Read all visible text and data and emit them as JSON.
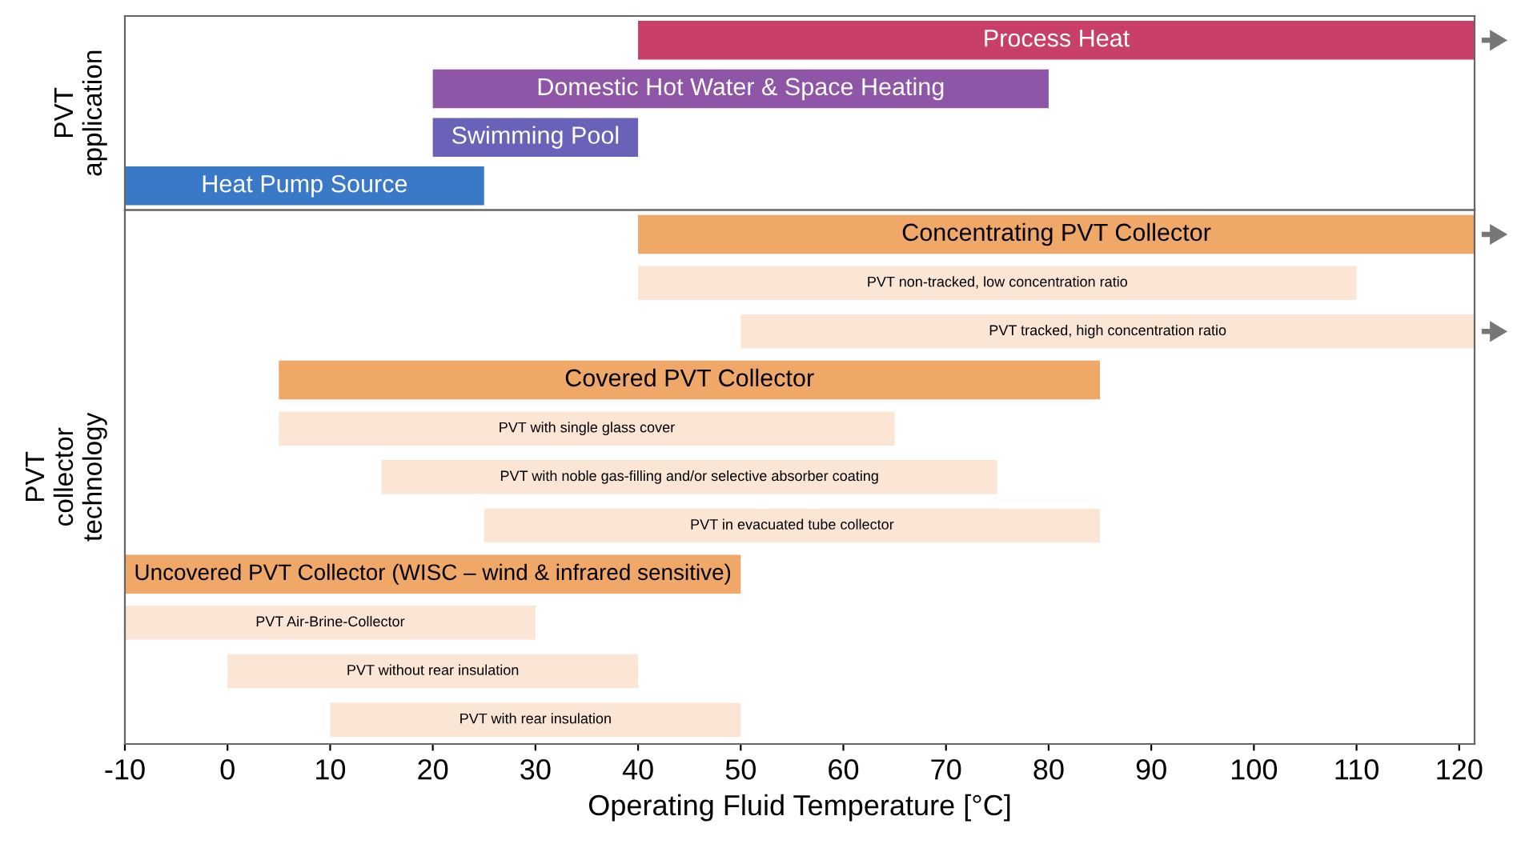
{
  "chart_data": [
    {
      "type": "bar",
      "orientation": "horizontal",
      "ylabel": "PVT\napplication",
      "tick_labels": false,
      "categories": [
        "Process Heat",
        "Domestic Hot Water & Space Heating",
        "Swimming Pool",
        "Heat Pump Source"
      ],
      "base": [
        40,
        20,
        20,
        -10
      ],
      "values": [
        81.5,
        60,
        20,
        35
      ],
      "colors": [
        "#c8406a",
        "#8f55a6",
        "#6a62b8",
        "#3a78c8"
      ],
      "xlim": [
        -10,
        121.5
      ]
    },
    {
      "type": "bar",
      "orientation": "horizontal",
      "ylabel": "PVT\ncollector\ntechnology",
      "tick_labels": "x",
      "xlabel": "Operating Fluid Temperature [°C]",
      "categories": [
        "Concentrating PVT Collector",
        "PVT non-tracked, low concentration ratio",
        "PVT tracked, high concentration ratio",
        "Covered PVT Collector",
        "PVT with single glass cover",
        "PVT with noble gas-filling and/or selective absorber coating",
        "PVT in evacuated tube collector",
        "Uncovered PVT Collector (WISC – wind & infrared sensitive)",
        "PVT Air-Brine-Collector",
        "PVT without rear insulation",
        "PVT with rear insulation"
      ],
      "base": [
        40,
        40,
        50,
        5,
        5,
        15,
        25,
        -10,
        -10,
        0,
        10
      ],
      "values": [
        81.5,
        70,
        71.5,
        80,
        60,
        60,
        60,
        60,
        40,
        40,
        40
      ],
      "colors": [
        "#f0a868",
        "#fbe6d6",
        "#fbe6d6",
        "#f0a868",
        "#fbe6d6",
        "#fbe6d6",
        "#fbe6d6",
        "#f0a868",
        "#fbe6d6",
        "#fbe6d6",
        "#fbe6d6"
      ],
      "xlim": [
        -10,
        121.5
      ],
      "xticks": [
        -10,
        0,
        10,
        20,
        30,
        40,
        50,
        60,
        70,
        80,
        90,
        100,
        110,
        120
      ]
    }
  ]
}
